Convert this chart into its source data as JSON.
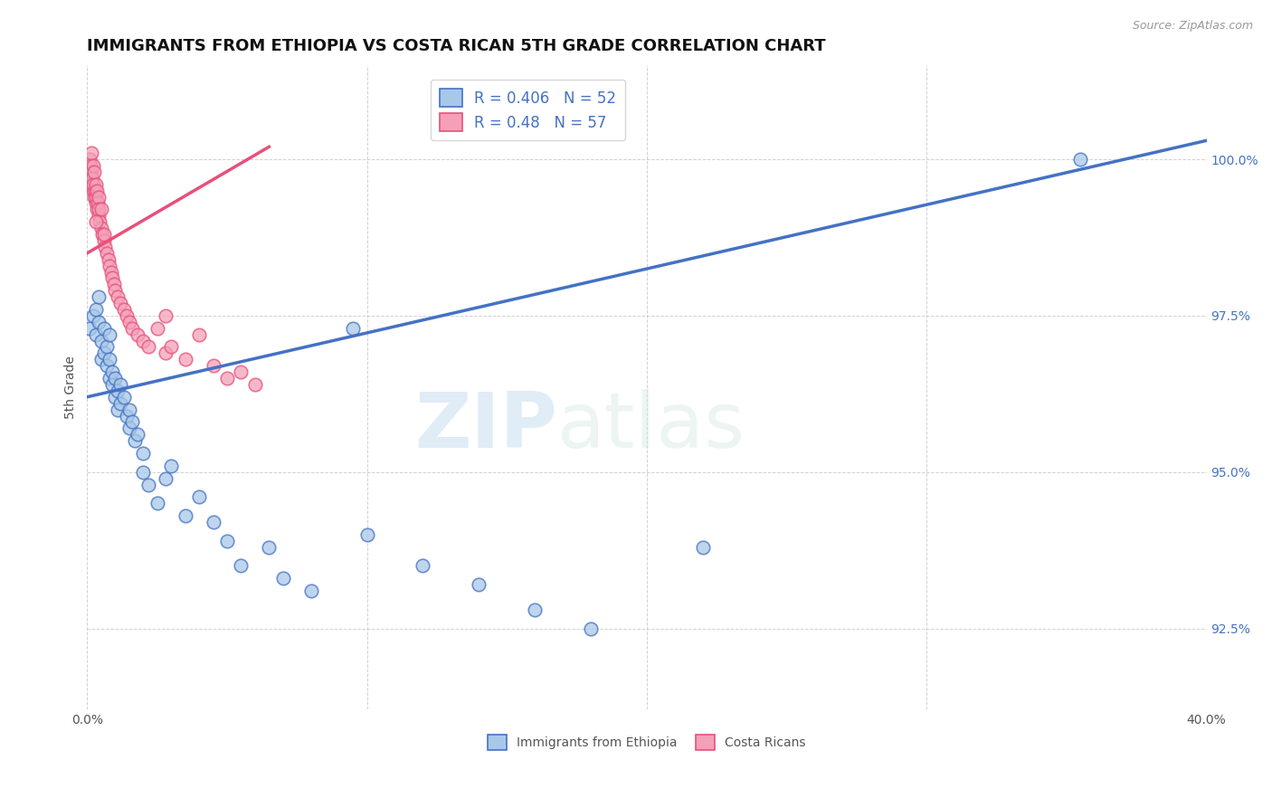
{
  "title": "IMMIGRANTS FROM ETHIOPIA VS COSTA RICAN 5TH GRADE CORRELATION CHART",
  "source": "Source: ZipAtlas.com",
  "xlabel_blue": "Immigrants from Ethiopia",
  "xlabel_pink": "Costa Ricans",
  "ylabel": "5th Grade",
  "xlim": [
    0.0,
    40.0
  ],
  "ylim": [
    91.2,
    101.5
  ],
  "xticks": [
    0.0,
    10.0,
    20.0,
    30.0,
    40.0
  ],
  "xtick_labels": [
    "0.0%",
    "",
    "",
    "",
    "40.0%"
  ],
  "yticks": [
    92.5,
    95.0,
    97.5,
    100.0
  ],
  "ytick_labels": [
    "92.5%",
    "95.0%",
    "97.5%",
    "100.0%"
  ],
  "blue_R": 0.406,
  "blue_N": 52,
  "pink_R": 0.48,
  "pink_N": 57,
  "blue_color": "#a8c8e8",
  "pink_color": "#f4a0b8",
  "blue_line_color": "#4472c4",
  "pink_line_color": "#e8507a",
  "background_color": "#ffffff",
  "watermark_zip": "ZIP",
  "watermark_atlas": "atlas",
  "blue_x": [
    0.1,
    0.2,
    0.3,
    0.3,
    0.4,
    0.4,
    0.5,
    0.5,
    0.6,
    0.6,
    0.7,
    0.7,
    0.8,
    0.8,
    0.8,
    0.9,
    0.9,
    1.0,
    1.0,
    1.1,
    1.1,
    1.2,
    1.2,
    1.3,
    1.4,
    1.5,
    1.5,
    1.6,
    1.7,
    1.8,
    2.0,
    2.0,
    2.2,
    2.5,
    2.8,
    3.0,
    3.5,
    4.0,
    4.5,
    5.0,
    5.5,
    6.5,
    7.0,
    8.0,
    9.5,
    10.0,
    12.0,
    14.0,
    16.0,
    18.0,
    22.0,
    35.5
  ],
  "blue_y": [
    97.3,
    97.5,
    97.6,
    97.2,
    97.4,
    97.8,
    97.1,
    96.8,
    97.3,
    96.9,
    97.0,
    96.7,
    97.2,
    96.5,
    96.8,
    96.4,
    96.6,
    96.2,
    96.5,
    96.3,
    96.0,
    96.4,
    96.1,
    96.2,
    95.9,
    96.0,
    95.7,
    95.8,
    95.5,
    95.6,
    95.3,
    95.0,
    94.8,
    94.5,
    94.9,
    95.1,
    94.3,
    94.6,
    94.2,
    93.9,
    93.5,
    93.8,
    93.3,
    93.1,
    97.3,
    94.0,
    93.5,
    93.2,
    92.8,
    92.5,
    93.8,
    100.0
  ],
  "pink_x": [
    0.05,
    0.08,
    0.1,
    0.1,
    0.12,
    0.15,
    0.15,
    0.18,
    0.2,
    0.2,
    0.22,
    0.25,
    0.25,
    0.28,
    0.3,
    0.3,
    0.32,
    0.35,
    0.35,
    0.38,
    0.4,
    0.4,
    0.42,
    0.45,
    0.5,
    0.5,
    0.55,
    0.6,
    0.65,
    0.7,
    0.75,
    0.8,
    0.85,
    0.9,
    0.95,
    1.0,
    1.1,
    1.2,
    1.3,
    1.4,
    1.5,
    1.6,
    1.8,
    2.0,
    2.2,
    2.5,
    2.8,
    3.0,
    3.5,
    4.0,
    4.5,
    5.0,
    5.5,
    6.0,
    2.8,
    0.6,
    0.3
  ],
  "pink_y": [
    99.7,
    99.8,
    99.6,
    100.0,
    99.9,
    99.8,
    100.1,
    99.7,
    99.5,
    99.9,
    99.6,
    99.4,
    99.8,
    99.5,
    99.3,
    99.6,
    99.4,
    99.2,
    99.5,
    99.3,
    99.1,
    99.4,
    99.2,
    99.0,
    99.2,
    98.9,
    98.8,
    98.7,
    98.6,
    98.5,
    98.4,
    98.3,
    98.2,
    98.1,
    98.0,
    97.9,
    97.8,
    97.7,
    97.6,
    97.5,
    97.4,
    97.3,
    97.2,
    97.1,
    97.0,
    97.3,
    96.9,
    97.0,
    96.8,
    97.2,
    96.7,
    96.5,
    96.6,
    96.4,
    97.5,
    98.8,
    99.0
  ],
  "blue_line_x0": 0.0,
  "blue_line_y0": 96.2,
  "blue_line_x1": 40.0,
  "blue_line_y1": 100.3,
  "pink_line_x0": 0.0,
  "pink_line_y0": 98.5,
  "pink_line_x1": 6.5,
  "pink_line_y1": 100.2,
  "title_fontsize": 13,
  "axis_label_fontsize": 10,
  "tick_fontsize": 10,
  "legend_fontsize": 12
}
